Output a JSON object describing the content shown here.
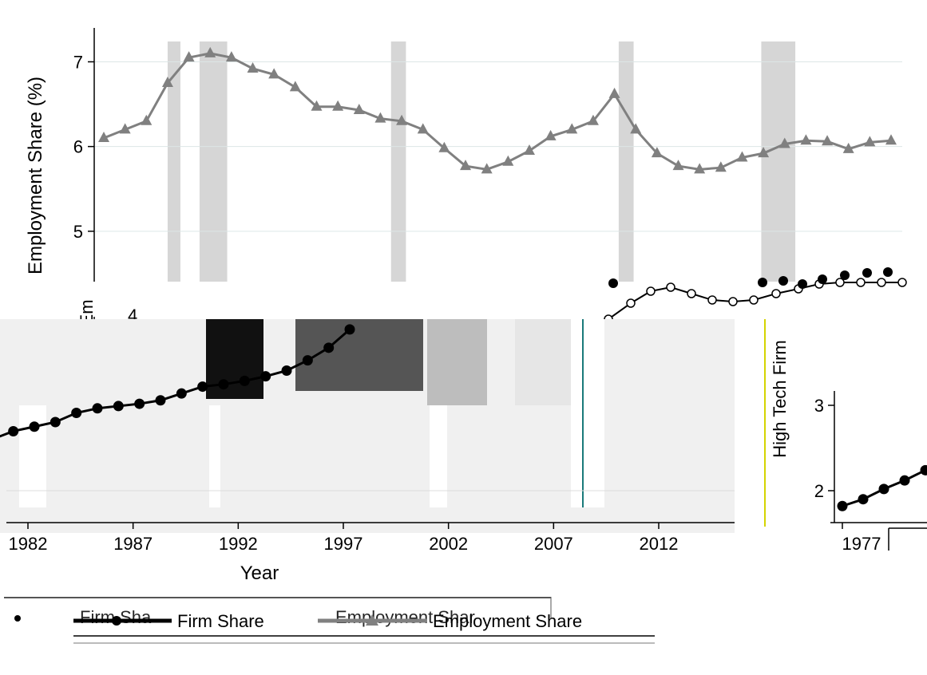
{
  "chart_data": [
    {
      "type": "line",
      "title": "",
      "xlabel": "",
      "ylabel": "Employment Share (%)",
      "ylim": [
        4.0,
        7.4
      ],
      "xlim": [
        1977,
        2016
      ],
      "yticks": [
        "5",
        "6",
        "7"
      ],
      "grid": true,
      "recession_bands": [
        [
          1980.0,
          1980.6
        ],
        [
          1981.5,
          1982.8
        ],
        [
          1990.5,
          1991.2
        ],
        [
          2001.2,
          2001.9
        ],
        [
          2007.9,
          2009.5
        ]
      ],
      "series": [
        {
          "name": "Employment Share",
          "marker": "triangle",
          "color": "#808080",
          "x": [
            1977,
            1978,
            1979,
            1980,
            1981,
            1982,
            1983,
            1984,
            1985,
            1986,
            1987,
            1988,
            1989,
            1990,
            1991,
            1992,
            1993,
            1994,
            1995,
            1996,
            1997,
            1998,
            1999,
            2000,
            2001,
            2002,
            2003,
            2004,
            2005,
            2006,
            2007,
            2008,
            2009,
            2010,
            2011,
            2012,
            2013,
            2014
          ],
          "y": [
            6.1,
            6.2,
            6.3,
            6.75,
            7.05,
            7.1,
            7.05,
            6.92,
            6.85,
            6.7,
            6.47,
            6.47,
            6.43,
            6.33,
            6.3,
            6.2,
            5.98,
            5.77,
            5.73,
            5.82,
            5.95,
            6.12,
            6.2,
            6.3,
            6.62,
            6.2,
            5.92,
            5.77,
            5.73,
            5.75,
            5.87,
            5.92,
            6.03,
            6.07,
            6.06,
            5.97,
            6.05,
            6.07
          ]
        }
      ]
    },
    {
      "type": "line",
      "title": "",
      "xlabel": "Year",
      "ylabel": "",
      "xticks": [
        "1982",
        "1987",
        "1992",
        "1997",
        "2002",
        "2007",
        "2012"
      ],
      "grid": true,
      "legend": {
        "position": "bottom",
        "entries": [
          "Firm Share",
          "Employment Share"
        ]
      },
      "series": [
        {
          "name": "Firm Share",
          "marker": "circle",
          "color": "#000000",
          "x": [
            1980,
            1981,
            1982,
            1983,
            1984,
            1985,
            1986,
            1987,
            1988,
            1989,
            1990,
            1991,
            1992,
            1993,
            1994,
            1995,
            1996,
            1997
          ],
          "y": [
            2.45,
            2.52,
            2.56,
            2.6,
            2.68,
            2.72,
            2.74,
            2.76,
            2.79,
            2.85,
            2.91,
            2.93,
            2.96,
            3.0,
            3.05,
            3.14,
            3.25,
            3.41
          ]
        }
      ]
    },
    {
      "type": "line",
      "title": "",
      "xlabel": "",
      "ylabel": "High Tech Firm",
      "yticks": [
        "2",
        "3"
      ],
      "xticks": [
        "1977"
      ],
      "series": [
        {
          "name": "Firm Share",
          "marker": "circle",
          "color": "#000000",
          "x": [
            1977,
            1978,
            1979,
            1980,
            1981,
            1982
          ],
          "y": [
            1.82,
            1.9,
            2.02,
            2.12,
            2.24,
            2.33
          ]
        }
      ]
    }
  ],
  "fragments": {
    "clipped_ylabel": "/Em",
    "clipped_tick": "4",
    "garbled_xticks": [
      "1982",
      "1987",
      "1992",
      "1997",
      "2002",
      "2007",
      "2012"
    ],
    "garbled_xlabel_fragments": [
      "2002",
      "2007",
      "20",
      "1977",
      "1982"
    ],
    "legend_ghost_firm": "Firm Sha",
    "legend_ghost_emp": "Employment Shar",
    "legend_firm": "Firm Share",
    "legend_emp": "Employment Share"
  }
}
